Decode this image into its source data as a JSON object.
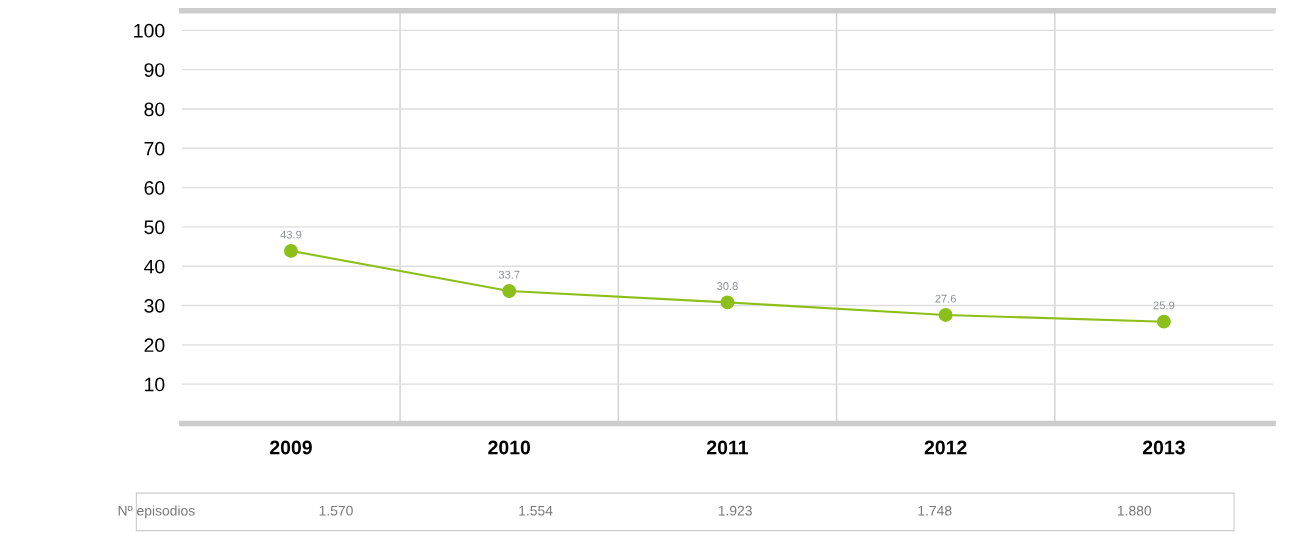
{
  "chart_data": {
    "type": "line",
    "categories": [
      "2009",
      "2010",
      "2011",
      "2012",
      "2013"
    ],
    "series": [
      {
        "color": "#8cbf1a",
        "values": [
          43.9,
          33.7,
          30.8,
          27.6,
          25.9
        ]
      }
    ],
    "ylim": [
      0,
      105
    ],
    "yticks": [
      {
        "value": 10,
        "label": "10"
      },
      20,
      30,
      40,
      50,
      60,
      70,
      80,
      90,
      100
    ],
    "grid": true,
    "marker": "circle",
    "line_style": "solid",
    "data_labels": true,
    "annotations": [
      "Nº episodios",
      "1.570",
      "1.554",
      "1.923",
      "1.748",
      "1.880"
    ]
  }
}
